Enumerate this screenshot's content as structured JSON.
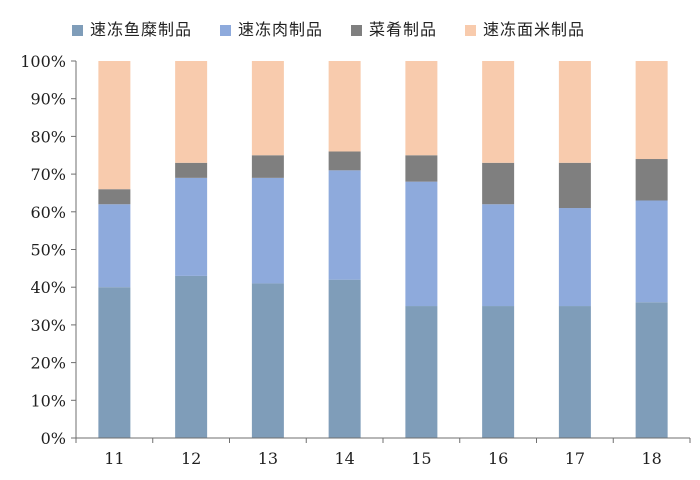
{
  "chart_data": {
    "type": "bar",
    "stacked": true,
    "categories": [
      "11",
      "12",
      "13",
      "14",
      "15",
      "16",
      "17",
      "18"
    ],
    "series": [
      {
        "name": "速冻鱼糜制品",
        "color": "#7f9db9",
        "values": [
          40,
          43,
          41,
          42,
          35,
          35,
          35,
          36
        ]
      },
      {
        "name": "速冻肉制品",
        "color": "#8eaadc",
        "values": [
          22,
          26,
          28,
          29,
          33,
          27,
          26,
          27
        ]
      },
      {
        "name": "菜肴制品",
        "color": "#7f7f7f",
        "values": [
          4,
          4,
          6,
          5,
          7,
          11,
          12,
          11
        ]
      },
      {
        "name": "速冻面米制品",
        "color": "#f8cbad",
        "values": [
          34,
          27,
          25,
          24,
          25,
          27,
          27,
          26
        ]
      }
    ],
    "y_tick_labels": [
      "0%",
      "10%",
      "20%",
      "30%",
      "40%",
      "50%",
      "60%",
      "70%",
      "80%",
      "90%",
      "100%"
    ],
    "ylim": [
      0,
      100
    ],
    "grid": false,
    "legend_position": "top",
    "title": "",
    "xlabel": "",
    "ylabel": ""
  }
}
